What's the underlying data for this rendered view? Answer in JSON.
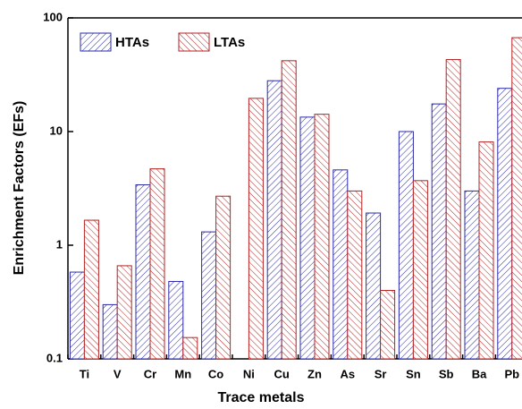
{
  "chart_data": {
    "type": "bar",
    "xlabel": "Trace metals",
    "ylabel": "Enrichment Factors (EFs)",
    "categories": [
      "Ti",
      "V",
      "Cr",
      "Mn",
      "Co",
      "Ni",
      "Cu",
      "Zn",
      "As",
      "Sr",
      "Sn",
      "Sb",
      "Ba",
      "Pb"
    ],
    "series": [
      {
        "name": "HTAs",
        "color": "#2a2aa8",
        "values": [
          0.58,
          0.3,
          3.4,
          0.48,
          1.31,
          null,
          28,
          13.4,
          4.6,
          1.92,
          10,
          17.5,
          3.0,
          24
        ]
      },
      {
        "name": "LTAs",
        "color": "#b22222",
        "values": [
          1.66,
          0.66,
          4.7,
          0.154,
          2.7,
          19.6,
          42,
          14.2,
          3.0,
          0.4,
          3.7,
          43,
          8.1,
          67
        ]
      }
    ],
    "log_scale": true,
    "ylim": [
      0.1,
      100
    ],
    "yticks": [
      0.1,
      1,
      10,
      100
    ],
    "legend": "top-left"
  }
}
